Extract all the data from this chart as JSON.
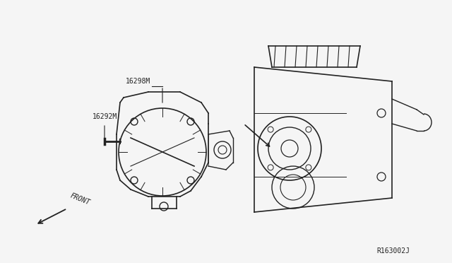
{
  "background_color": "#f5f5f5",
  "fig_width": 6.4,
  "fig_height": 3.72,
  "dpi": 100,
  "label_16298BM": "16298M",
  "label_16292M": "16292M",
  "label_front": "FRONT",
  "label_ref": "R163002J",
  "line_color": "#222222",
  "text_color": "#222222"
}
